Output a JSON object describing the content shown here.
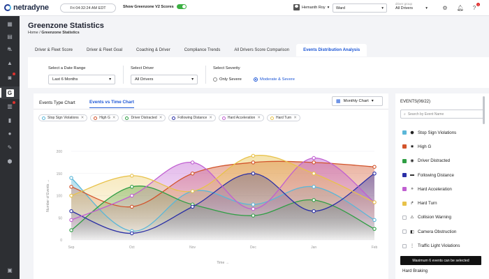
{
  "app": {
    "logo_text": "netradyne",
    "datetime": "Fri 04:32:24 AM EDT",
    "v2_label": "Show Greenzone V2 Scores",
    "v2_enabled": true,
    "user_name": "Hemanth Roy",
    "fleet_value": "Ward",
    "group_label": "driver group",
    "group_value": "All Drivers",
    "notifications_count": "1"
  },
  "sidebar": {
    "items": [
      {
        "icon": "dashboard-icon",
        "glyph": "▦"
      },
      {
        "icon": "document-icon",
        "glyph": "▤"
      },
      {
        "icon": "road-icon",
        "glyph": "⛐"
      },
      {
        "icon": "alert-icon",
        "glyph": "▲"
      },
      {
        "icon": "camera-icon",
        "glyph": "◙"
      },
      {
        "icon": "greenzone-icon",
        "glyph": "G"
      },
      {
        "icon": "bar-chart-icon",
        "glyph": "▥"
      },
      {
        "icon": "analytics-icon",
        "glyph": "▮"
      },
      {
        "icon": "person-icon",
        "glyph": "●"
      },
      {
        "icon": "wrench-icon",
        "glyph": "✎"
      },
      {
        "icon": "shield-icon",
        "glyph": "⬢"
      },
      {
        "icon": "help-icon",
        "glyph": "▣"
      }
    ]
  },
  "header": {
    "title": "Greenzone Statistics",
    "breadcrumb_home": "Home",
    "breadcrumb_sep": " / ",
    "breadcrumb_current": "Greenzone Statistics"
  },
  "tabs": [
    {
      "label": "Driver & Fleet Score"
    },
    {
      "label": "Driver & Fleet Goal"
    },
    {
      "label": "Coaching & Driver"
    },
    {
      "label": "Compliance Trends"
    },
    {
      "label": "All Drivers Score Comparison"
    },
    {
      "label": "Events Distribution Analysis",
      "active": true
    }
  ],
  "filters": {
    "date_range_label": "Select a Date Range",
    "date_range_value": "Last 6 Months",
    "driver_label": "Select Driver",
    "driver_value": "All Drivers",
    "severity_label": "Select Severity",
    "severity_options": [
      "Only Severe",
      "Moderate & Severe"
    ],
    "severity_selected": "Moderate & Severe"
  },
  "chart_card": {
    "tab_type": "Events Type Chart",
    "tab_time": "Events vs Time Chart",
    "chart_select_value": "Monthly Chart",
    "chips": [
      {
        "label": "Stop Sign Violations",
        "color": "#5bb7d8"
      },
      {
        "label": "High G",
        "color": "#d2542c"
      },
      {
        "label": "Driver Distracted",
        "color": "#2f9e44"
      },
      {
        "label": "Following Distance",
        "color": "#2a2fa6"
      },
      {
        "label": "Hard Acceleration",
        "color": "#c05fd1"
      },
      {
        "label": "Hard Turn",
        "color": "#e8c24a"
      }
    ]
  },
  "chart_data": {
    "type": "line",
    "smooth": true,
    "area_fill": true,
    "xlabel": "Time →",
    "ylabel": "Number of Events →",
    "categories": [
      "Sep",
      "Oct",
      "Nov",
      "Dec",
      "Jan",
      "Feb"
    ],
    "ylim": [
      0,
      200
    ],
    "yticks": [
      0,
      50,
      100,
      150,
      200
    ],
    "grid": true,
    "series": [
      {
        "name": "Stop Sign Violations",
        "color": "#5bb7d8",
        "values": [
          140,
          20,
          110,
          80,
          120,
          45
        ]
      },
      {
        "name": "High G",
        "color": "#d2542c",
        "values": [
          120,
          75,
          150,
          175,
          175,
          165
        ]
      },
      {
        "name": "Driver Distracted",
        "color": "#2f9e44",
        "values": [
          22,
          120,
          80,
          55,
          90,
          25
        ]
      },
      {
        "name": "Following Distance",
        "color": "#2a2fa6",
        "values": [
          65,
          15,
          75,
          150,
          65,
          150
        ]
      },
      {
        "name": "Hard Acceleration",
        "color": "#c05fd1",
        "values": [
          45,
          100,
          175,
          70,
          185,
          85
        ]
      },
      {
        "name": "Hard Turn",
        "color": "#e8c24a",
        "values": [
          100,
          145,
          110,
          190,
          150,
          85
        ]
      }
    ]
  },
  "events_panel": {
    "title": "EVENTS(06/22)",
    "search_placeholder": "Search by Event Name",
    "items": [
      {
        "label": "Stop Sign Violations",
        "color": "#5bb7d8",
        "checked": true,
        "icon": "stop-sign-icon",
        "glyph": "⬣"
      },
      {
        "label": "High G",
        "color": "#d2542c",
        "checked": true,
        "icon": "car-crash-icon",
        "glyph": "✸"
      },
      {
        "label": "Driver Distracted",
        "color": "#2f9e44",
        "checked": true,
        "icon": "eye-icon",
        "glyph": "◉"
      },
      {
        "label": "Following Distance",
        "color": "#2a2fa6",
        "checked": true,
        "icon": "following-distance-icon",
        "glyph": "▬"
      },
      {
        "label": "Hard Acceleration",
        "color": "#c05fd1",
        "checked": true,
        "icon": "acceleration-icon",
        "glyph": "»"
      },
      {
        "label": "Hard Turn",
        "color": "#e8c24a",
        "checked": true,
        "icon": "turn-icon",
        "glyph": "↱"
      },
      {
        "label": "Collision Warning",
        "color": "#c9ccd3",
        "checked": false,
        "icon": "collision-icon",
        "glyph": "⚠"
      },
      {
        "label": "Camera Obstruction",
        "color": "#c9ccd3",
        "checked": false,
        "icon": "camera-obstruction-icon",
        "glyph": "◧"
      },
      {
        "label": "Traffic Light Violations",
        "color": "#c9ccd3",
        "checked": false,
        "icon": "traffic-light-icon",
        "glyph": "⋮"
      }
    ],
    "more_label": "Hard Braking",
    "tooltip": "Maximum 6 events can be selected"
  }
}
